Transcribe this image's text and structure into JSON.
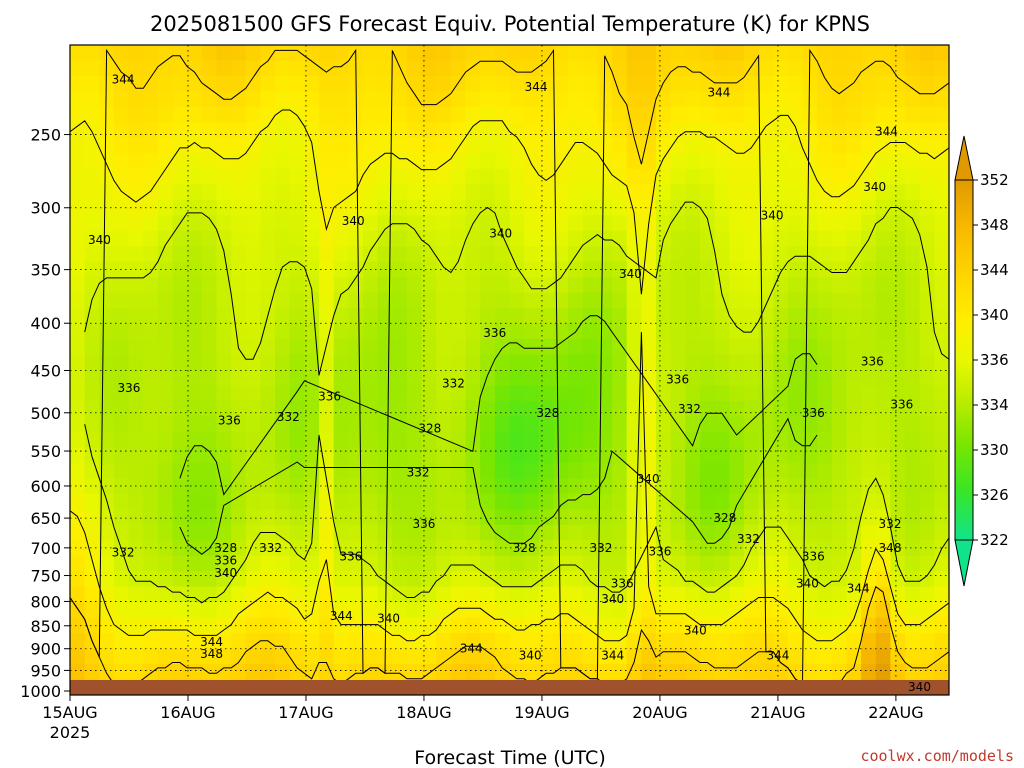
{
  "chart_data": {
    "type": "heatmap",
    "title": "2025081500 GFS Forecast Equiv. Potential Temperature (K) for KPNS",
    "xlabel": "Forecast Time (UTC)",
    "ylabel": "",
    "x_ticks": [
      "15AUG",
      "16AUG",
      "17AUG",
      "18AUG",
      "19AUG",
      "20AUG",
      "21AUG",
      "22AUG"
    ],
    "x_year": "2025",
    "xlim_days": [
      0,
      7.45
    ],
    "y_ticks": [
      1000,
      950,
      900,
      850,
      800,
      750,
      700,
      650,
      600,
      550,
      500,
      450,
      400,
      350,
      300,
      250
    ],
    "ylim_hPa": [
      1010,
      200
    ],
    "y_scale": "log",
    "grid": true,
    "colorbar": {
      "ticks": [
        352,
        348,
        344,
        340,
        336,
        334,
        330,
        326,
        322
      ],
      "colors": [
        "#e0a000",
        "#f7c200",
        "#ffe400",
        "#f0f800",
        "#c8f000",
        "#96e600",
        "#4ee61a",
        "#1ee66a"
      ],
      "range": [
        320,
        354
      ]
    },
    "ground_color": "#a0522d",
    "contour_labels": [
      {
        "day": 0.45,
        "p": 218,
        "text": "344"
      },
      {
        "day": 3.95,
        "p": 222,
        "text": "344"
      },
      {
        "day": 5.5,
        "p": 225,
        "text": "344"
      },
      {
        "day": 6.92,
        "p": 248,
        "text": "344"
      },
      {
        "day": 6.82,
        "p": 285,
        "text": "340"
      },
      {
        "day": 0.25,
        "p": 325,
        "text": "340"
      },
      {
        "day": 2.4,
        "p": 310,
        "text": "340"
      },
      {
        "day": 3.65,
        "p": 320,
        "text": "340"
      },
      {
        "day": 4.75,
        "p": 354,
        "text": "340"
      },
      {
        "day": 5.95,
        "p": 306,
        "text": "340"
      },
      {
        "day": 3.6,
        "p": 410,
        "text": "336"
      },
      {
        "day": 0.5,
        "p": 470,
        "text": "336"
      },
      {
        "day": 1.35,
        "p": 510,
        "text": "336"
      },
      {
        "day": 2.2,
        "p": 480,
        "text": "336"
      },
      {
        "day": 5.15,
        "p": 460,
        "text": "336"
      },
      {
        "day": 6.8,
        "p": 440,
        "text": "336"
      },
      {
        "day": 7.05,
        "p": 490,
        "text": "336"
      },
      {
        "day": 6.3,
        "p": 500,
        "text": "336"
      },
      {
        "day": 1.85,
        "p": 505,
        "text": "332"
      },
      {
        "day": 3.25,
        "p": 465,
        "text": "332"
      },
      {
        "day": 5.25,
        "p": 495,
        "text": "332"
      },
      {
        "day": 2.95,
        "p": 580,
        "text": "332"
      },
      {
        "day": 4.05,
        "p": 500,
        "text": "328"
      },
      {
        "day": 3.05,
        "p": 520,
        "text": "328"
      },
      {
        "day": 0.45,
        "p": 708,
        "text": "332"
      },
      {
        "day": 1.32,
        "p": 700,
        "text": "328"
      },
      {
        "day": 1.32,
        "p": 722,
        "text": "336"
      },
      {
        "day": 1.32,
        "p": 745,
        "text": "340"
      },
      {
        "day": 1.7,
        "p": 700,
        "text": "332"
      },
      {
        "day": 2.38,
        "p": 715,
        "text": "336"
      },
      {
        "day": 3.0,
        "p": 660,
        "text": "336"
      },
      {
        "day": 3.85,
        "p": 700,
        "text": "328"
      },
      {
        "day": 4.5,
        "p": 700,
        "text": "332"
      },
      {
        "day": 4.68,
        "p": 765,
        "text": "336"
      },
      {
        "day": 4.9,
        "p": 590,
        "text": "340"
      },
      {
        "day": 5.0,
        "p": 706,
        "text": "336"
      },
      {
        "day": 4.6,
        "p": 795,
        "text": "340"
      },
      {
        "day": 5.55,
        "p": 650,
        "text": "328"
      },
      {
        "day": 5.75,
        "p": 685,
        "text": "332"
      },
      {
        "day": 6.3,
        "p": 715,
        "text": "336"
      },
      {
        "day": 6.25,
        "p": 765,
        "text": "340"
      },
      {
        "day": 6.95,
        "p": 660,
        "text": "332"
      },
      {
        "day": 6.95,
        "p": 700,
        "text": "348"
      },
      {
        "day": 6.68,
        "p": 775,
        "text": "344"
      },
      {
        "day": 5.3,
        "p": 860,
        "text": "340"
      },
      {
        "day": 2.3,
        "p": 830,
        "text": "344"
      },
      {
        "day": 2.7,
        "p": 835,
        "text": "340"
      },
      {
        "day": 1.2,
        "p": 885,
        "text": "344"
      },
      {
        "day": 1.2,
        "p": 912,
        "text": "348"
      },
      {
        "day": 3.4,
        "p": 900,
        "text": "344"
      },
      {
        "day": 3.9,
        "p": 915,
        "text": "340"
      },
      {
        "day": 4.6,
        "p": 915,
        "text": "344"
      },
      {
        "day": 6.0,
        "p": 915,
        "text": "344"
      },
      {
        "day": 7.2,
        "p": 990,
        "text": "340"
      }
    ]
  },
  "credit": "coolwx.com/models"
}
